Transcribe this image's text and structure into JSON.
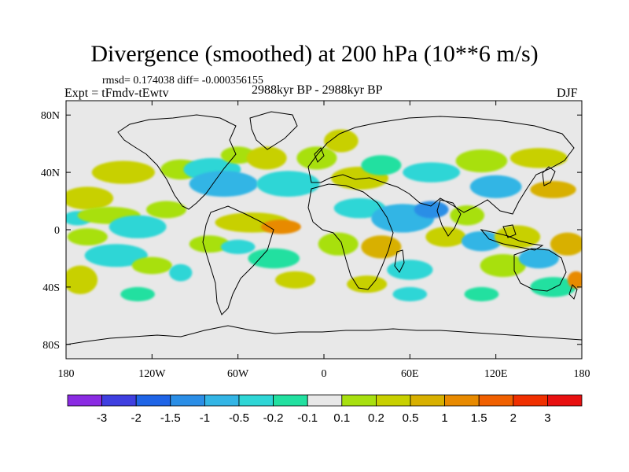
{
  "chart_data": {
    "type": "heatmap",
    "title": "Divergence (smoothed) at 200 hPa (10**6 m/s)",
    "stats": "rmsd= 0.174038 diff= -0.000356155",
    "experiment": "Expt = tFmdv-tEwtv",
    "period": "2988kyr BP - 2988kyr BP",
    "season": "DJF",
    "x_ticks": [
      {
        "lon": -180,
        "label": "180"
      },
      {
        "lon": -120,
        "label": "120W"
      },
      {
        "lon": -60,
        "label": "60W"
      },
      {
        "lon": 0,
        "label": "0"
      },
      {
        "lon": 60,
        "label": "60E"
      },
      {
        "lon": 120,
        "label": "120E"
      },
      {
        "lon": 180,
        "label": "180"
      }
    ],
    "y_ticks": [
      {
        "lat": 80,
        "label": "80N"
      },
      {
        "lat": 40,
        "label": "40N"
      },
      {
        "lat": 0,
        "label": "0"
      },
      {
        "lat": -40,
        "label": "40S"
      },
      {
        "lat": -80,
        "label": "80S"
      }
    ],
    "xlim": [
      -180,
      180
    ],
    "ylim": [
      -90,
      90
    ],
    "colorbar": {
      "colors": [
        "#8a2be2",
        "#3f3fe0",
        "#1f64e6",
        "#2b8ee6",
        "#33b5e5",
        "#2fd6d6",
        "#22e0a0",
        "#e8e8e8",
        "#a8e010",
        "#c8d000",
        "#d8b000",
        "#e88a00",
        "#f06000",
        "#f03000",
        "#e81010"
      ],
      "labels": [
        "-3",
        "-2",
        "-1.5",
        "-1",
        "-0.5",
        "-0.2",
        "-0.1",
        "0.1",
        "0.2",
        "0.5",
        "1",
        "1.5",
        "2",
        "3"
      ]
    },
    "field_blobs": [
      {
        "lon": -165,
        "lat": 22,
        "rlon": 18,
        "rlat": 8,
        "color": "#c8d000"
      },
      {
        "lon": -172,
        "lat": 8,
        "rlon": 10,
        "rlat": 5,
        "color": "#2fd6d6"
      },
      {
        "lon": -150,
        "lat": 10,
        "rlon": 22,
        "rlat": 6,
        "color": "#a8e010"
      },
      {
        "lon": -130,
        "lat": 2,
        "rlon": 20,
        "rlat": 8,
        "color": "#2fd6d6"
      },
      {
        "lon": -110,
        "lat": 14,
        "rlon": 14,
        "rlat": 6,
        "color": "#a8e010"
      },
      {
        "lon": -165,
        "lat": -5,
        "rlon": 14,
        "rlat": 6,
        "color": "#a8e010"
      },
      {
        "lon": -145,
        "lat": -18,
        "rlon": 22,
        "rlat": 8,
        "color": "#2fd6d6"
      },
      {
        "lon": -170,
        "lat": -35,
        "rlon": 12,
        "rlat": 10,
        "color": "#c8d000"
      },
      {
        "lon": -120,
        "lat": -25,
        "rlon": 14,
        "rlat": 6,
        "color": "#a8e010"
      },
      {
        "lon": -130,
        "lat": -45,
        "rlon": 12,
        "rlat": 5,
        "color": "#22e0a0"
      },
      {
        "lon": -100,
        "lat": -30,
        "rlon": 8,
        "rlat": 6,
        "color": "#2fd6d6"
      },
      {
        "lon": -140,
        "lat": 40,
        "rlon": 22,
        "rlat": 8,
        "color": "#c8d000"
      },
      {
        "lon": -100,
        "lat": 42,
        "rlon": 14,
        "rlat": 7,
        "color": "#a8e010"
      },
      {
        "lon": -78,
        "lat": 42,
        "rlon": 20,
        "rlat": 8,
        "color": "#2fd6d6"
      },
      {
        "lon": -70,
        "lat": 32,
        "rlon": 24,
        "rlat": 9,
        "color": "#33b5e5"
      },
      {
        "lon": -60,
        "lat": 52,
        "rlon": 12,
        "rlat": 6,
        "color": "#a8e010"
      },
      {
        "lon": -40,
        "lat": 50,
        "rlon": 14,
        "rlat": 8,
        "color": "#c8d000"
      },
      {
        "lon": -25,
        "lat": 32,
        "rlon": 22,
        "rlat": 9,
        "color": "#2fd6d6"
      },
      {
        "lon": -5,
        "lat": 50,
        "rlon": 14,
        "rlat": 8,
        "color": "#a8e010"
      },
      {
        "lon": 12,
        "lat": 62,
        "rlon": 12,
        "rlat": 8,
        "color": "#c8d000"
      },
      {
        "lon": 25,
        "lat": 36,
        "rlon": 20,
        "rlat": 8,
        "color": "#c8d000"
      },
      {
        "lon": 40,
        "lat": 45,
        "rlon": 14,
        "rlat": 7,
        "color": "#22e0a0"
      },
      {
        "lon": 75,
        "lat": 40,
        "rlon": 20,
        "rlat": 7,
        "color": "#2fd6d6"
      },
      {
        "lon": 110,
        "lat": 48,
        "rlon": 18,
        "rlat": 8,
        "color": "#a8e010"
      },
      {
        "lon": 150,
        "lat": 50,
        "rlon": 20,
        "rlat": 7,
        "color": "#c8d000"
      },
      {
        "lon": 120,
        "lat": 30,
        "rlon": 18,
        "rlat": 8,
        "color": "#33b5e5"
      },
      {
        "lon": 160,
        "lat": 28,
        "rlon": 16,
        "rlat": 6,
        "color": "#d8b000"
      },
      {
        "lon": -50,
        "lat": 5,
        "rlon": 26,
        "rlat": 7,
        "color": "#c8d000"
      },
      {
        "lon": -30,
        "lat": 2,
        "rlon": 14,
        "rlat": 5,
        "color": "#e88a00"
      },
      {
        "lon": -80,
        "lat": -10,
        "rlon": 14,
        "rlat": 6,
        "color": "#a8e010"
      },
      {
        "lon": -60,
        "lat": -12,
        "rlon": 12,
        "rlat": 5,
        "color": "#2fd6d6"
      },
      {
        "lon": -35,
        "lat": -20,
        "rlon": 18,
        "rlat": 7,
        "color": "#22e0a0"
      },
      {
        "lon": -20,
        "lat": -35,
        "rlon": 14,
        "rlat": 6,
        "color": "#c8d000"
      },
      {
        "lon": 10,
        "lat": -10,
        "rlon": 14,
        "rlat": 8,
        "color": "#a8e010"
      },
      {
        "lon": 25,
        "lat": 15,
        "rlon": 18,
        "rlat": 7,
        "color": "#2fd6d6"
      },
      {
        "lon": 55,
        "lat": 8,
        "rlon": 22,
        "rlat": 10,
        "color": "#33b5e5"
      },
      {
        "lon": 75,
        "lat": 14,
        "rlon": 12,
        "rlat": 6,
        "color": "#2b8ee6"
      },
      {
        "lon": 40,
        "lat": -12,
        "rlon": 14,
        "rlat": 8,
        "color": "#d8b000"
      },
      {
        "lon": 60,
        "lat": -28,
        "rlon": 16,
        "rlat": 7,
        "color": "#2fd6d6"
      },
      {
        "lon": 30,
        "lat": -38,
        "rlon": 14,
        "rlat": 6,
        "color": "#c8d000"
      },
      {
        "lon": 85,
        "lat": -5,
        "rlon": 14,
        "rlat": 7,
        "color": "#c8d000"
      },
      {
        "lon": 100,
        "lat": 10,
        "rlon": 12,
        "rlat": 7,
        "color": "#a8e010"
      },
      {
        "lon": 110,
        "lat": -8,
        "rlon": 14,
        "rlat": 7,
        "color": "#33b5e5"
      },
      {
        "lon": 135,
        "lat": -5,
        "rlon": 16,
        "rlat": 8,
        "color": "#c8d000"
      },
      {
        "lon": 125,
        "lat": -25,
        "rlon": 16,
        "rlat": 8,
        "color": "#a8e010"
      },
      {
        "lon": 150,
        "lat": -20,
        "rlon": 14,
        "rlat": 7,
        "color": "#33b5e5"
      },
      {
        "lon": 170,
        "lat": -10,
        "rlon": 12,
        "rlat": 8,
        "color": "#d8b000"
      },
      {
        "lon": 160,
        "lat": -40,
        "rlon": 16,
        "rlat": 7,
        "color": "#22e0a0"
      },
      {
        "lon": 110,
        "lat": -45,
        "rlon": 12,
        "rlat": 5,
        "color": "#22e0a0"
      },
      {
        "lon": 60,
        "lat": -45,
        "rlon": 12,
        "rlat": 5,
        "color": "#2fd6d6"
      },
      {
        "lon": 176,
        "lat": -35,
        "rlon": 6,
        "rlat": 6,
        "color": "#e88a00"
      }
    ]
  }
}
